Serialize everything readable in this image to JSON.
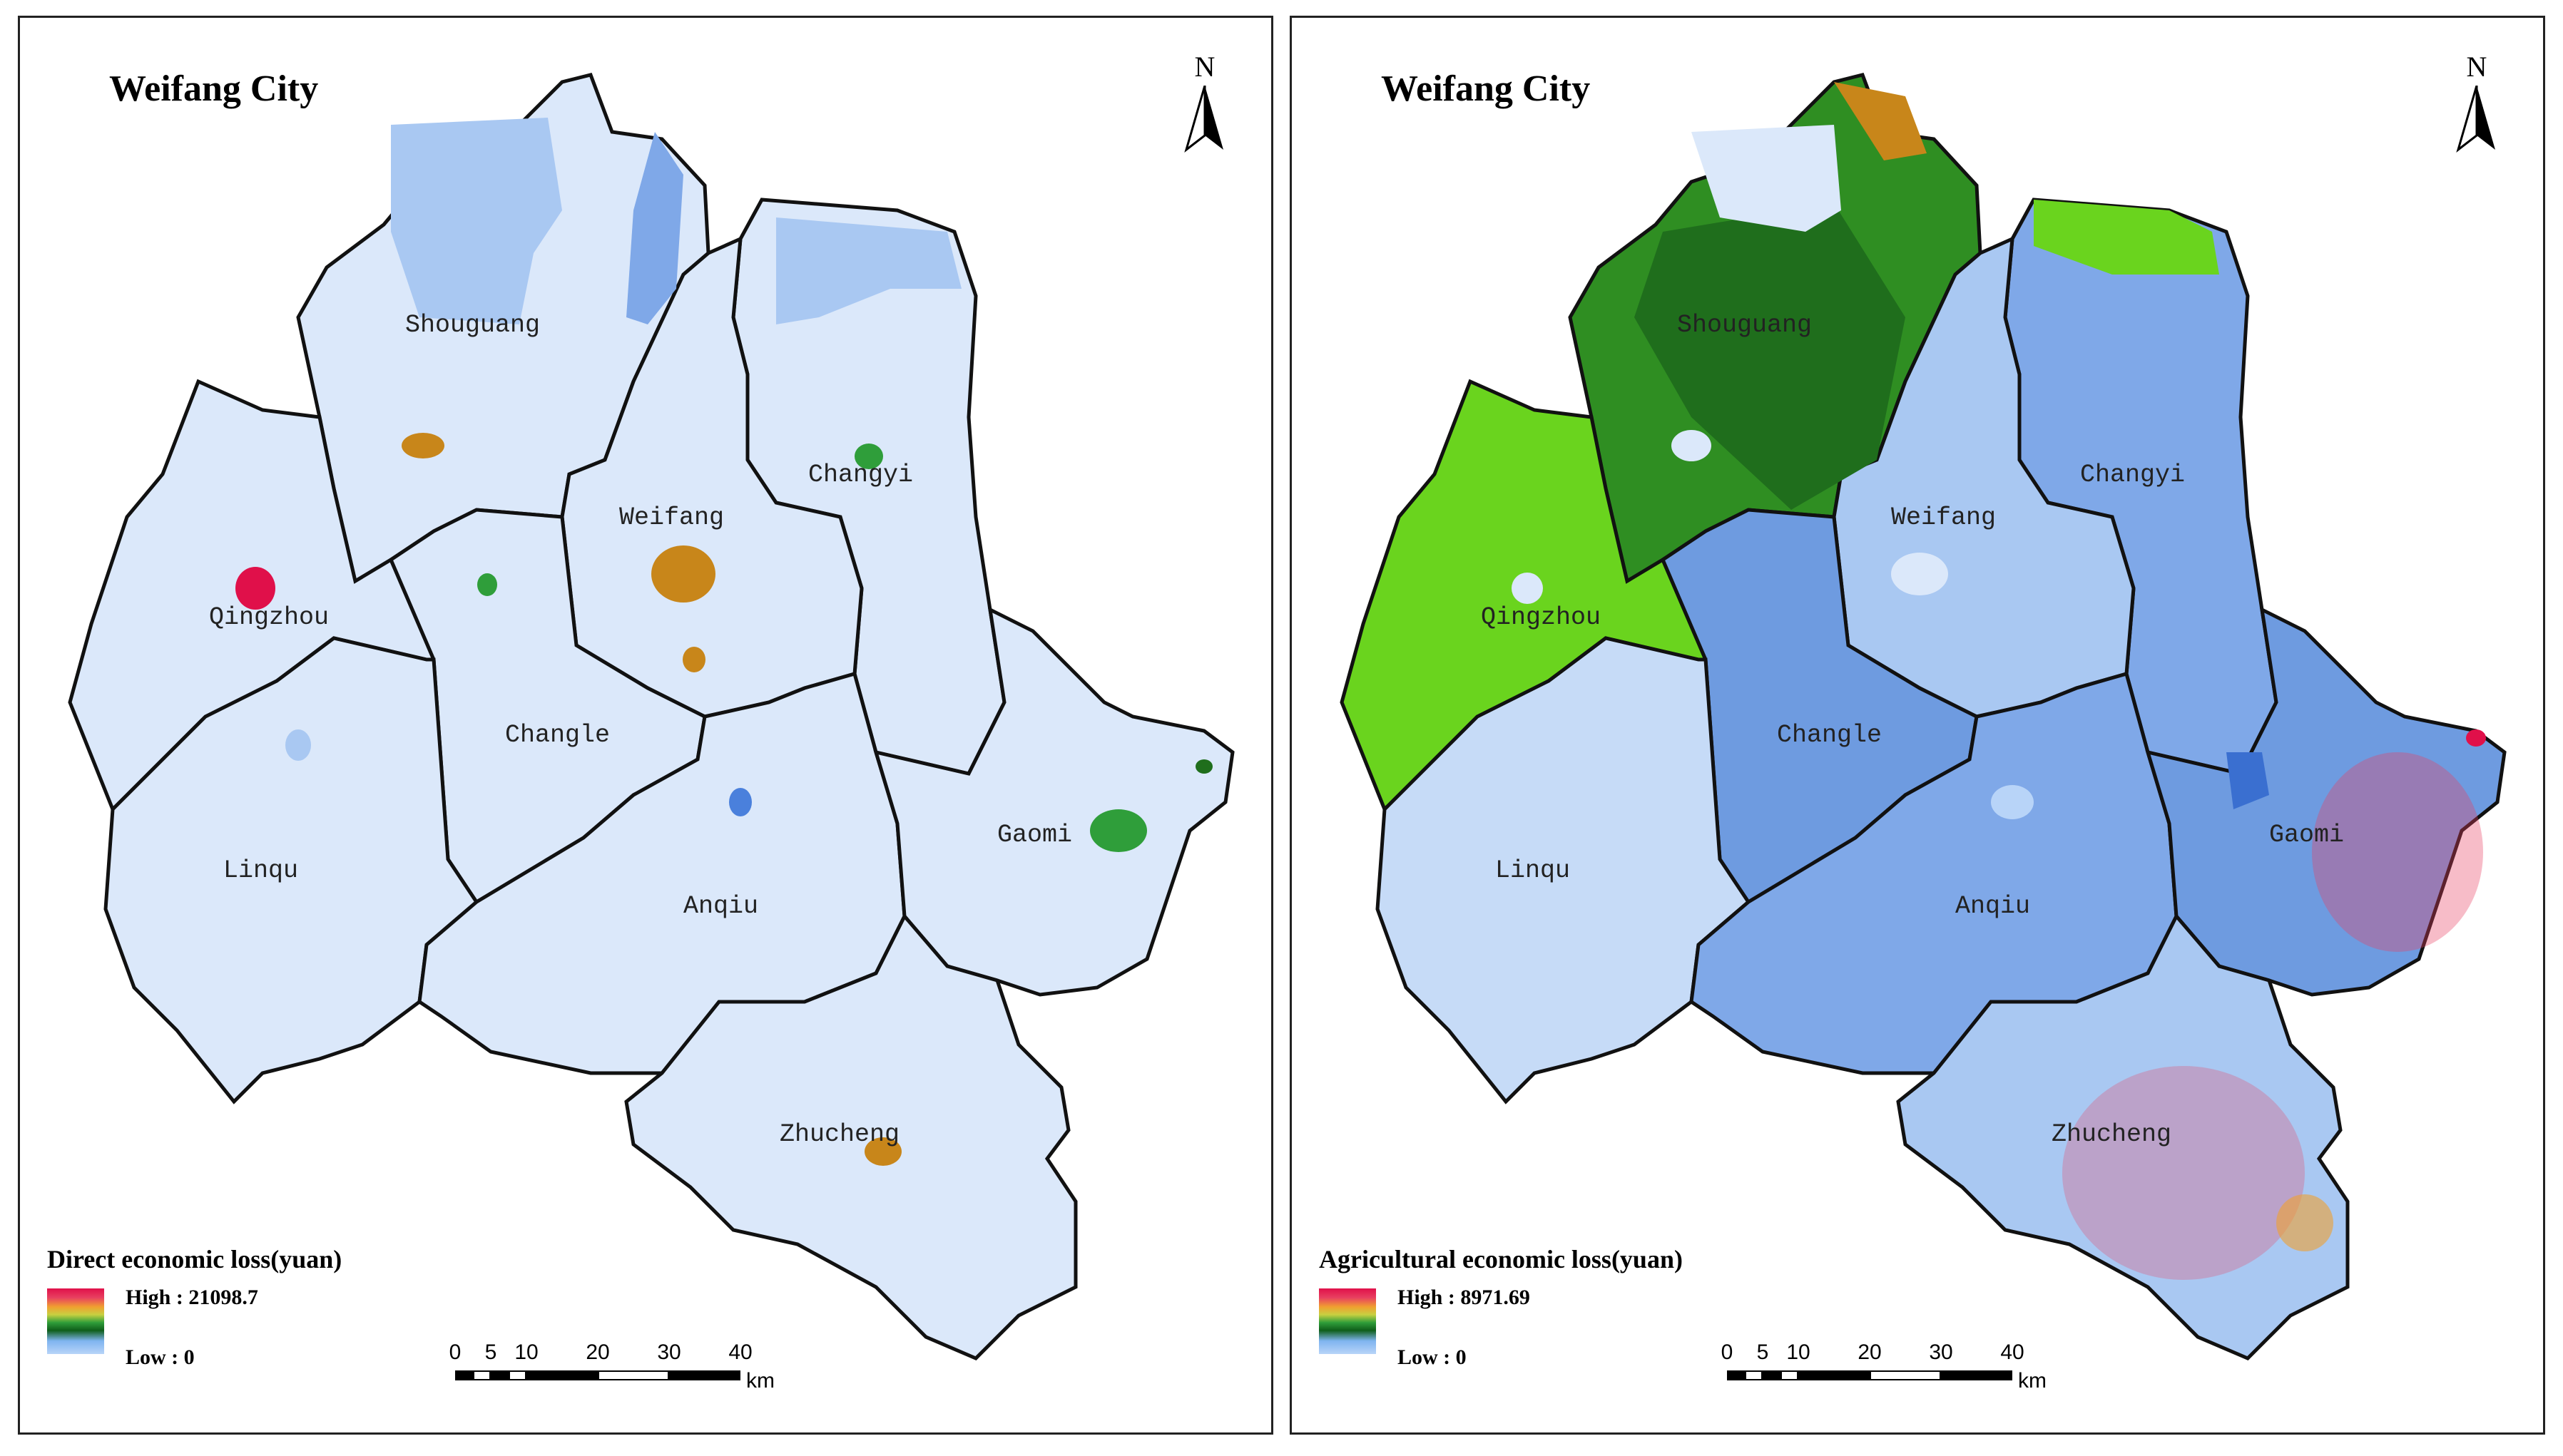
{
  "maps": [
    {
      "title": "Weifang  City",
      "north_label": "N",
      "legend": {
        "title": "Direct economic loss(yuan)",
        "high": "High : 21098.7",
        "low": "Low : 0"
      },
      "counties": [
        "Shouguang",
        "Changyi",
        "Weifang",
        "Qingzhou",
        "Changle",
        "Linqu",
        "Anqiu",
        "Gaomi",
        "Zhucheng"
      ],
      "scale": {
        "ticks": [
          "0",
          "5",
          "10",
          "20",
          "30",
          "40"
        ],
        "unit": "km"
      }
    },
    {
      "title": "Weifang  City",
      "north_label": "N",
      "legend": {
        "title": "Agricultural economic loss(yuan)",
        "high": "High : 8971.69",
        "low": "Low : 0"
      },
      "counties": [
        "Shouguang",
        "Changyi",
        "Weifang",
        "Qingzhou",
        "Changle",
        "Linqu",
        "Anqiu",
        "Gaomi",
        "Zhucheng"
      ],
      "scale": {
        "ticks": [
          "0",
          "5",
          "10",
          "20",
          "30",
          "40"
        ],
        "unit": "km"
      }
    }
  ],
  "colors": {
    "low_blue": "#dbe8fa",
    "mid_blue": "#7fa8e8",
    "deep_blue": "#4a80dc",
    "green": "#2f9e3a",
    "bright_green": "#6ad41e",
    "dark_green": "#1f6e1c",
    "orange": "#c8861a",
    "red": "#e0104a",
    "border": "#111111"
  }
}
